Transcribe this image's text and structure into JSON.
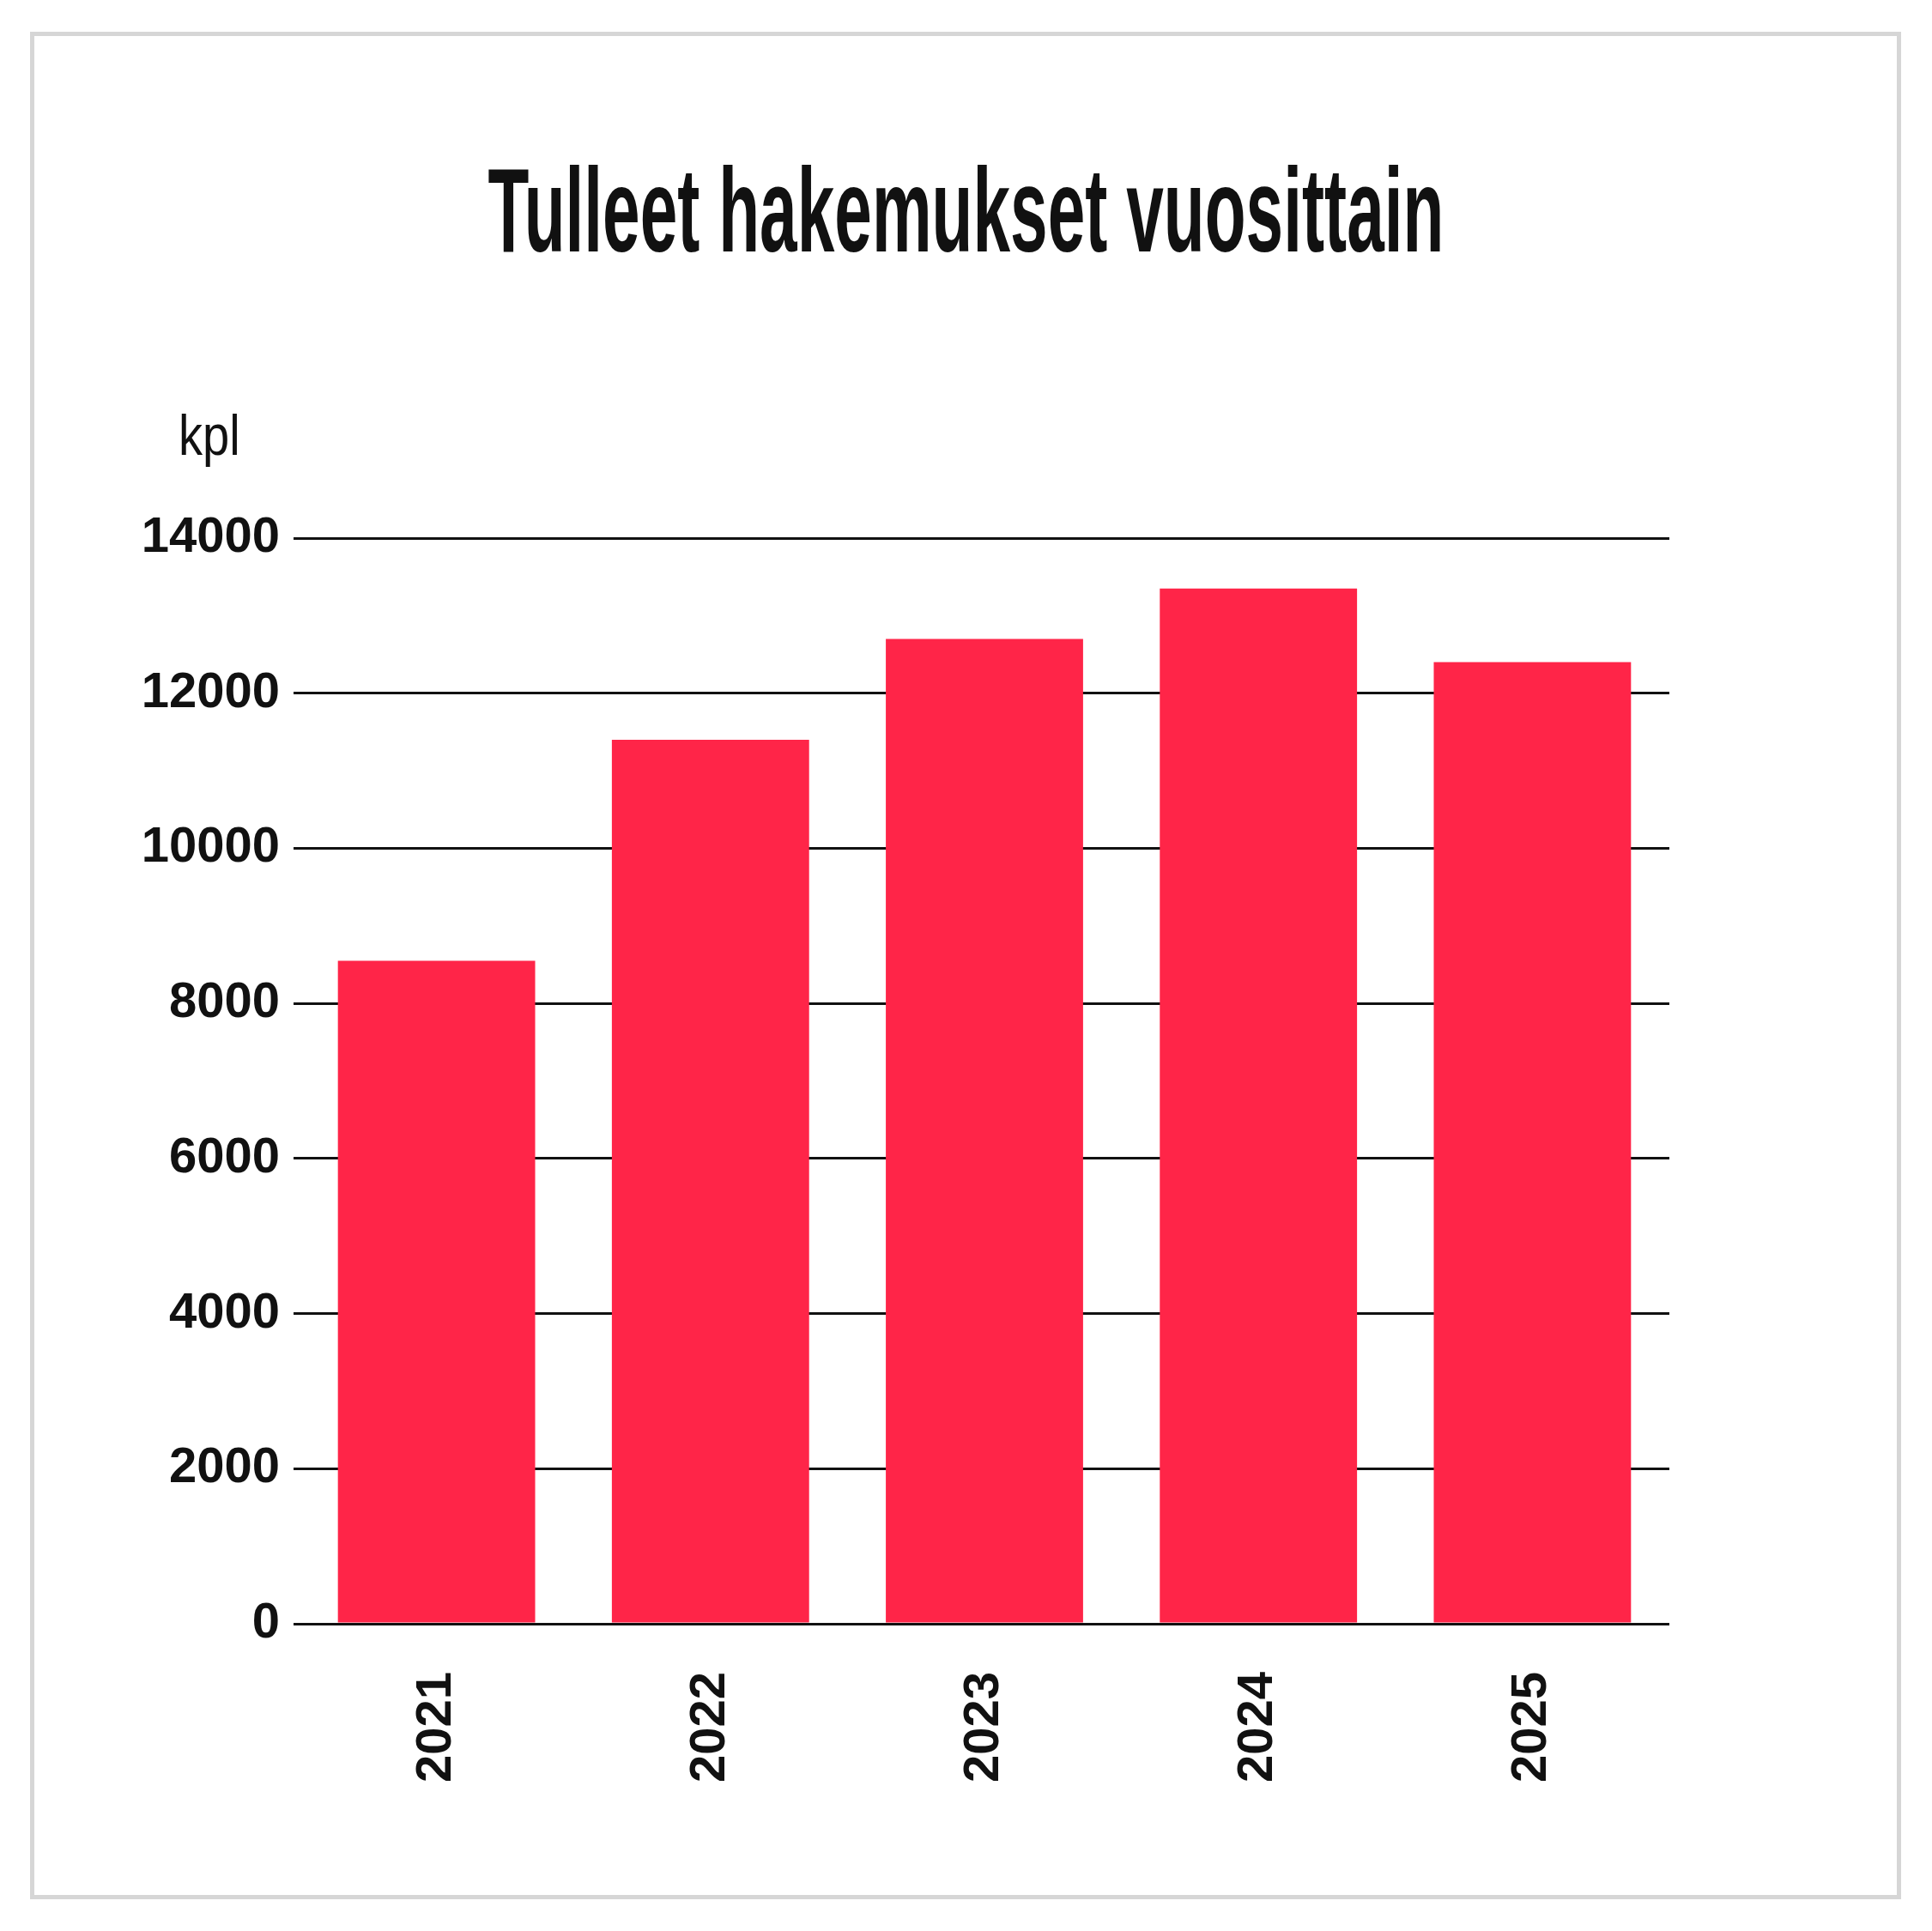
{
  "chart_data": {
    "type": "bar",
    "title": "Tulleet hakemukset vuosittain",
    "ylabel": "kpl",
    "categories": [
      "2021",
      "2022",
      "2023",
      "2024",
      "2025"
    ],
    "values": [
      8550,
      11400,
      12700,
      13350,
      12400
    ],
    "color": "#ff2548",
    "ylim": [
      0,
      14000
    ],
    "yticks": [
      0,
      2000,
      4000,
      6000,
      8000,
      10000,
      12000,
      14000
    ],
    "grid": "y"
  }
}
